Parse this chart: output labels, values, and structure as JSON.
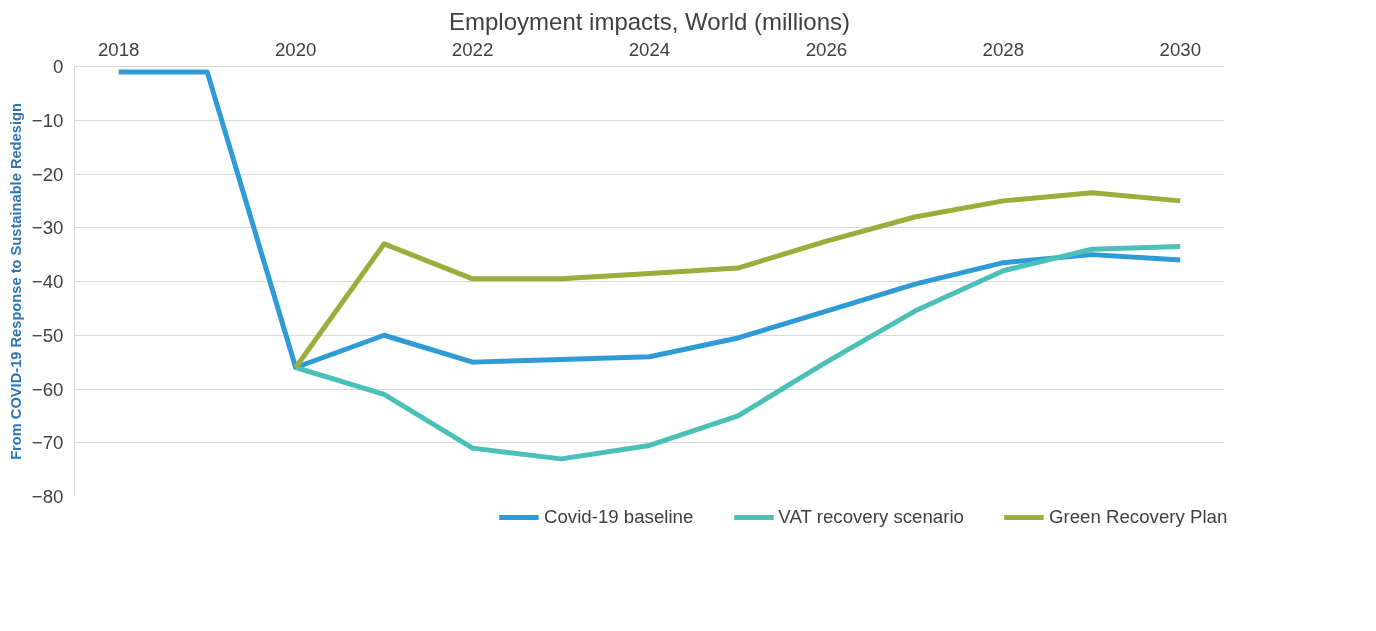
{
  "chart_data": {
    "type": "line",
    "title": "Employment impacts, World (millions)",
    "annotations": [
      "From COVID-19 Response to Sustainable Redesign"
    ],
    "x": [
      2018,
      2019,
      2020,
      2021,
      2022,
      2023,
      2024,
      2025,
      2026,
      2027,
      2028,
      2029,
      2030
    ],
    "series": [
      {
        "name": "Covid-19 baseline",
        "color": "#2e9bd6",
        "values": [
          -1,
          -1,
          -56,
          -50,
          -55,
          -54.5,
          -54,
          -50.5,
          -45.5,
          -40.5,
          -36.5,
          -35,
          -36
        ]
      },
      {
        "name": "VAT recovery scenario",
        "color": "#4bc0b8",
        "values": [
          null,
          null,
          -56,
          -61,
          -71,
          -73,
          -70.5,
          -65,
          -55,
          -45.5,
          -38,
          -34,
          -33.5
        ]
      },
      {
        "name": "Green Recovery Plan",
        "color": "#9bad3a",
        "values": [
          null,
          null,
          -56,
          -33,
          -39.5,
          -39.5,
          -38.5,
          -37.5,
          -32.5,
          -28,
          -25,
          -23.5,
          -25
        ]
      }
    ],
    "xlim": [
      2017.5,
      2030.5
    ],
    "xticks": [
      2018,
      2020,
      2022,
      2024,
      2026,
      2028,
      2030
    ],
    "ylim": [
      -80,
      0
    ],
    "yticks": [
      0,
      -10,
      -20,
      -30,
      -40,
      -50,
      -60,
      -70,
      -80
    ],
    "grid": "y",
    "legend": "bottom",
    "line_style": "solid",
    "marker": "none"
  }
}
